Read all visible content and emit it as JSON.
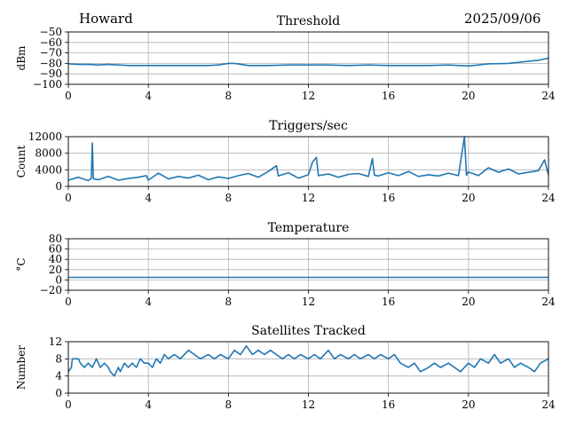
{
  "header": {
    "station": "Howard",
    "date": "2025/09/06"
  },
  "chart_data": [
    {
      "type": "line",
      "title": "Threshold",
      "xlabel": "",
      "ylabel": "dBm",
      "xlim": [
        0,
        24
      ],
      "ylim": [
        -100,
        -50
      ],
      "xticks": [
        0,
        4,
        8,
        12,
        16,
        20,
        24
      ],
      "yticks": [
        -50,
        -60,
        -70,
        -80,
        -90,
        -100
      ],
      "ytick_labels": [
        "−50",
        "−60",
        "−70",
        "−80",
        "−90",
        "−100"
      ],
      "grid": true,
      "series": [
        {
          "x": [
            0,
            0.5,
            1,
            1.5,
            2,
            3,
            4,
            5,
            6,
            7,
            7.5,
            8,
            8.3,
            9,
            10,
            11,
            12,
            13,
            14,
            15,
            16,
            17,
            18,
            19,
            19.5,
            20,
            20.5,
            21,
            22,
            23,
            23.5,
            24
          ],
          "y": [
            -80.5,
            -81,
            -81,
            -81.5,
            -81,
            -82,
            -82,
            -82,
            -82,
            -82,
            -81.5,
            -80,
            -80,
            -82,
            -82,
            -81.5,
            -81.5,
            -81.5,
            -82,
            -81.5,
            -82,
            -82,
            -82,
            -81.5,
            -82,
            -82.5,
            -81.5,
            -80.5,
            -80,
            -78,
            -77,
            -75
          ]
        }
      ]
    },
    {
      "type": "line",
      "title": "Triggers/sec",
      "xlabel": "",
      "ylabel": "Count",
      "xlim": [
        0,
        24
      ],
      "ylim": [
        0,
        12000
      ],
      "xticks": [
        0,
        4,
        8,
        12,
        16,
        20,
        24
      ],
      "yticks": [
        0,
        4000,
        8000,
        12000
      ],
      "grid": true,
      "series": [
        {
          "x": [
            0,
            0.5,
            1,
            1.15,
            1.2,
            1.25,
            1.5,
            2,
            2.5,
            3,
            3.5,
            3.9,
            4,
            4.5,
            5,
            5.5,
            6,
            6.5,
            7,
            7.5,
            8,
            8.5,
            9,
            9.5,
            10,
            10.4,
            10.5,
            11,
            11.5,
            12,
            12.2,
            12.4,
            12.5,
            13,
            13.5,
            14,
            14.5,
            15,
            15.2,
            15.3,
            15.5,
            16,
            16.5,
            17,
            17.5,
            18,
            18.5,
            19,
            19.5,
            19.8,
            19.9,
            20,
            20.5,
            21,
            21.5,
            22,
            22.5,
            23,
            23.5,
            23.8,
            24
          ],
          "y": [
            1500,
            2200,
            1400,
            2000,
            10500,
            1800,
            1600,
            2400,
            1500,
            1900,
            2200,
            2600,
            1500,
            3200,
            1800,
            2400,
            2000,
            2700,
            1600,
            2300,
            1900,
            2600,
            3100,
            2200,
            3600,
            5000,
            2500,
            3300,
            2000,
            2800,
            5800,
            7000,
            2600,
            3000,
            2200,
            2900,
            3100,
            2400,
            6700,
            2700,
            2500,
            3300,
            2600,
            3600,
            2400,
            2800,
            2500,
            3200,
            2600,
            12000,
            2700,
            3500,
            2600,
            4500,
            3400,
            4200,
            3000,
            3400,
            3800,
            6400,
            2800
          ]
        }
      ]
    },
    {
      "type": "line",
      "title": "Temperature",
      "xlabel": "",
      "ylabel": "°C",
      "xlim": [
        0,
        24
      ],
      "ylim": [
        -20,
        80
      ],
      "xticks": [
        0,
        4,
        8,
        12,
        16,
        20,
        24
      ],
      "yticks": [
        80,
        60,
        40,
        20,
        0,
        -20
      ],
      "ytick_labels": [
        "80",
        "60",
        "40",
        "20",
        "0",
        "−20"
      ],
      "grid": true,
      "series": [
        {
          "x": [
            0,
            24
          ],
          "y": [
            5,
            5
          ]
        }
      ]
    },
    {
      "type": "line",
      "title": "Satellites Tracked",
      "xlabel": "",
      "ylabel": "Number",
      "xlim": [
        0,
        24
      ],
      "ylim": [
        0,
        12
      ],
      "xticks": [
        0,
        4,
        8,
        12,
        16,
        20,
        24
      ],
      "yticks": [
        0,
        4,
        8,
        12
      ],
      "grid": true,
      "series": [
        {
          "x": [
            0,
            0.15,
            0.2,
            0.5,
            0.6,
            0.8,
            1,
            1.2,
            1.4,
            1.6,
            1.8,
            2,
            2.1,
            2.3,
            2.5,
            2.6,
            2.8,
            3,
            3.2,
            3.4,
            3.6,
            3.8,
            4,
            4.2,
            4.4,
            4.6,
            4.8,
            5,
            5.3,
            5.6,
            6,
            6.3,
            6.6,
            7,
            7.3,
            7.6,
            8,
            8.3,
            8.6,
            8.9,
            9.2,
            9.5,
            9.8,
            10.1,
            10.4,
            10.7,
            11,
            11.3,
            11.6,
            12,
            12.3,
            12.6,
            13,
            13.3,
            13.6,
            14,
            14.3,
            14.6,
            15,
            15.3,
            15.6,
            16,
            16.3,
            16.6,
            17,
            17.3,
            17.6,
            18,
            18.3,
            18.6,
            19,
            19.3,
            19.6,
            20,
            20.3,
            20.6,
            21,
            21.3,
            21.6,
            22,
            22.3,
            22.6,
            23,
            23.3,
            23.6,
            24
          ],
          "y": [
            5,
            6,
            8,
            8,
            7,
            6,
            7,
            6,
            8,
            6,
            7,
            6,
            5,
            4,
            6,
            5,
            7,
            6,
            7,
            6,
            8,
            7,
            7,
            6,
            8,
            7,
            9,
            8,
            9,
            8,
            10,
            9,
            8,
            9,
            8,
            9,
            8,
            10,
            9,
            11,
            9,
            10,
            9,
            10,
            9,
            8,
            9,
            8,
            9,
            8,
            9,
            8,
            10,
            8,
            9,
            8,
            9,
            8,
            9,
            8,
            9,
            8,
            9,
            7,
            6,
            7,
            5,
            6,
            7,
            6,
            7,
            6,
            5,
            7,
            6,
            8,
            7,
            9,
            7,
            8,
            6,
            7,
            6,
            5,
            7,
            8
          ]
        }
      ]
    }
  ]
}
